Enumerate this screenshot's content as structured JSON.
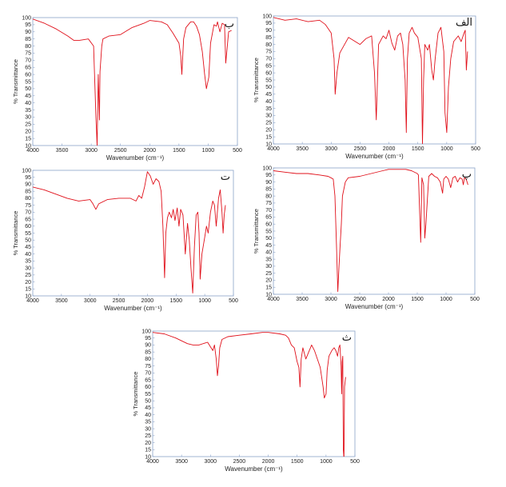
{
  "chart_data": [
    {
      "type": "line",
      "label": "ب",
      "xlabel": "Wavenumber (cm⁻¹)",
      "ylabel": "% Transmittance",
      "xlim": [
        4000,
        500
      ],
      "ylim": [
        10,
        100
      ],
      "xticks": [
        4000,
        3500,
        3000,
        2500,
        2000,
        1500,
        1000,
        500
      ],
      "yticks": [
        10,
        15,
        20,
        25,
        30,
        35,
        40,
        45,
        50,
        55,
        60,
        65,
        70,
        75,
        80,
        85,
        90,
        95,
        100
      ],
      "line_color": "#e0101a",
      "x": [
        4000,
        3800,
        3600,
        3400,
        3300,
        3200,
        3050,
        2960,
        2920,
        2900,
        2880,
        2860,
        2850,
        2820,
        2800,
        2700,
        2500,
        2300,
        2100,
        2000,
        1800,
        1700,
        1600,
        1500,
        1470,
        1450,
        1420,
        1380,
        1300,
        1250,
        1200,
        1150,
        1100,
        1060,
        1030,
        990,
        960,
        900,
        860,
        840,
        800,
        760,
        720,
        700,
        650,
        600
      ],
      "y": [
        99,
        96,
        92,
        87,
        84,
        84,
        85,
        80,
        30,
        10,
        60,
        28,
        62,
        80,
        85,
        87,
        88,
        93,
        96,
        98,
        97,
        95,
        89,
        82,
        73,
        60,
        85,
        93,
        97,
        97,
        94,
        88,
        76,
        60,
        50,
        58,
        82,
        95,
        94,
        97,
        90,
        96,
        95,
        68,
        90,
        91
      ]
    },
    {
      "type": "line",
      "label": "الف",
      "xlabel": "Wavenumber (cm⁻¹)",
      "ylabel": "% Transmittance",
      "xlim": [
        4000,
        500
      ],
      "ylim": [
        10,
        100
      ],
      "xticks": [
        4000,
        3500,
        3000,
        2500,
        2000,
        1500,
        1000,
        500
      ],
      "yticks": [
        10,
        15,
        20,
        25,
        30,
        35,
        40,
        45,
        50,
        55,
        60,
        65,
        70,
        75,
        80,
        85,
        90,
        95,
        100
      ],
      "line_color": "#e0101a",
      "x": [
        4000,
        3800,
        3600,
        3400,
        3200,
        3100,
        3000,
        2950,
        2930,
        2900,
        2850,
        2700,
        2500,
        2400,
        2300,
        2250,
        2220,
        2180,
        2100,
        2050,
        2000,
        1950,
        1900,
        1850,
        1800,
        1760,
        1720,
        1700,
        1680,
        1650,
        1600,
        1560,
        1500,
        1440,
        1420,
        1400,
        1380,
        1330,
        1300,
        1260,
        1230,
        1200,
        1150,
        1100,
        1050,
        1030,
        1000,
        970,
        930,
        880,
        800,
        750,
        700,
        680,
        660,
        640
      ],
      "y": [
        99,
        97,
        98,
        96,
        97,
        94,
        88,
        70,
        45,
        60,
        74,
        85,
        80,
        84,
        86,
        60,
        27,
        80,
        86,
        84,
        90,
        81,
        76,
        86,
        88,
        80,
        55,
        18,
        70,
        88,
        92,
        88,
        85,
        70,
        10,
        55,
        80,
        76,
        80,
        62,
        55,
        70,
        88,
        92,
        75,
        32,
        18,
        50,
        70,
        82,
        86,
        82,
        88,
        90,
        62,
        75
      ]
    },
    {
      "type": "line",
      "label": "ت",
      "xlabel": "Wavenumber (cm⁻¹)",
      "ylabel": "% Transmittance",
      "xlim": [
        4000,
        500
      ],
      "ylim": [
        10,
        100
      ],
      "xticks": [
        4000,
        3500,
        3000,
        2500,
        2000,
        1500,
        1000,
        500
      ],
      "yticks": [
        10,
        15,
        20,
        25,
        30,
        35,
        40,
        45,
        50,
        55,
        60,
        65,
        70,
        75,
        80,
        85,
        90,
        95,
        100
      ],
      "line_color": "#e0101a",
      "x": [
        4000,
        3800,
        3600,
        3400,
        3200,
        3000,
        2950,
        2900,
        2850,
        2700,
        2500,
        2300,
        2200,
        2150,
        2100,
        2050,
        2000,
        1950,
        1900,
        1850,
        1800,
        1760,
        1730,
        1700,
        1680,
        1650,
        1620,
        1580,
        1550,
        1520,
        1480,
        1450,
        1420,
        1380,
        1340,
        1300,
        1270,
        1240,
        1210,
        1180,
        1150,
        1120,
        1100,
        1080,
        1050,
        1000,
        970,
        940,
        900,
        860,
        830,
        800,
        760,
        730,
        700,
        680,
        660,
        640
      ],
      "y": [
        88,
        86,
        83,
        80,
        78,
        79,
        76,
        72,
        76,
        79,
        80,
        80,
        78,
        82,
        80,
        88,
        99,
        96,
        90,
        94,
        92,
        85,
        60,
        23,
        55,
        66,
        70,
        66,
        72,
        64,
        73,
        60,
        72,
        68,
        40,
        62,
        50,
        30,
        12,
        45,
        68,
        70,
        55,
        22,
        40,
        52,
        60,
        55,
        70,
        78,
        75,
        60,
        80,
        86,
        70,
        55,
        68,
        75
      ]
    },
    {
      "type": "line",
      "label": "پ",
      "xlabel": "Wavenumber (cm⁻¹)",
      "ylabel": "% Transmittance",
      "xlim": [
        4000,
        500
      ],
      "ylim": [
        10,
        100
      ],
      "xticks": [
        4000,
        3500,
        3000,
        2500,
        2000,
        1500,
        1000,
        500
      ],
      "yticks": [
        10,
        15,
        20,
        25,
        30,
        35,
        40,
        45,
        50,
        55,
        60,
        65,
        70,
        75,
        80,
        85,
        90,
        95,
        100
      ],
      "line_color": "#e0101a",
      "x": [
        4000,
        3800,
        3600,
        3400,
        3200,
        3050,
        3000,
        2960,
        2930,
        2900,
        2880,
        2860,
        2840,
        2820,
        2800,
        2750,
        2700,
        2500,
        2300,
        2100,
        2000,
        1900,
        1700,
        1600,
        1500,
        1480,
        1460,
        1440,
        1420,
        1390,
        1370,
        1350,
        1300,
        1250,
        1200,
        1150,
        1100,
        1060,
        1040,
        1000,
        960,
        920,
        880,
        840,
        800,
        760,
        720,
        700,
        680,
        650,
        620
      ],
      "y": [
        98,
        97,
        96,
        96,
        95,
        94,
        93,
        92,
        80,
        40,
        12,
        30,
        45,
        60,
        80,
        90,
        93,
        94,
        96,
        98,
        99,
        99,
        99,
        98,
        96,
        95,
        70,
        47,
        93,
        88,
        50,
        60,
        94,
        96,
        94,
        93,
        90,
        82,
        92,
        94,
        92,
        86,
        93,
        94,
        90,
        93,
        92,
        88,
        93,
        92,
        88
      ]
    },
    {
      "type": "line",
      "label": "ث",
      "xlabel": "Wavenumber (cm⁻¹)",
      "ylabel": "% Transmittance",
      "xlim": [
        4000,
        500
      ],
      "ylim": [
        10,
        100
      ],
      "xticks": [
        4000,
        3500,
        3000,
        2500,
        2000,
        1500,
        1000,
        500
      ],
      "yticks": [
        10,
        15,
        20,
        25,
        30,
        35,
        40,
        45,
        50,
        55,
        60,
        65,
        70,
        75,
        80,
        85,
        90,
        95,
        100
      ],
      "line_color": "#e0101a",
      "x": [
        4000,
        3800,
        3600,
        3400,
        3300,
        3200,
        3050,
        2960,
        2930,
        2900,
        2880,
        2860,
        2840,
        2800,
        2700,
        2500,
        2300,
        2100,
        2000,
        1800,
        1700,
        1650,
        1600,
        1550,
        1500,
        1470,
        1450,
        1430,
        1400,
        1350,
        1300,
        1250,
        1200,
        1150,
        1100,
        1050,
        1030,
        1000,
        980,
        950,
        900,
        860,
        830,
        800,
        780,
        760,
        740,
        730,
        720,
        710,
        700,
        690,
        680,
        660
      ],
      "y": [
        99,
        98,
        95,
        91,
        90,
        90,
        92,
        86,
        90,
        80,
        68,
        75,
        88,
        94,
        96,
        97,
        98,
        99,
        99,
        98,
        97,
        95,
        90,
        88,
        78,
        74,
        60,
        80,
        88,
        80,
        85,
        90,
        86,
        80,
        74,
        60,
        52,
        55,
        72,
        82,
        86,
        88,
        86,
        82,
        88,
        90,
        75,
        55,
        78,
        82,
        15,
        8,
        60,
        67
      ]
    }
  ]
}
